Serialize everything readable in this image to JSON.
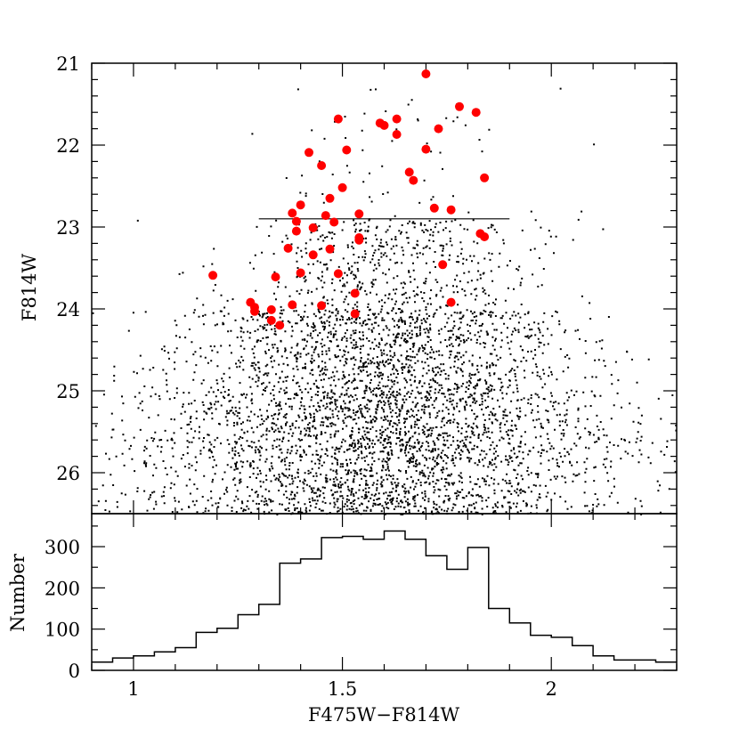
{
  "chart_data": [
    {
      "type": "scatter",
      "panel": "color-magnitude diagram",
      "xlabel": "F475W−F814W",
      "ylabel": "F814W",
      "xlim": [
        0.9,
        2.3
      ],
      "ylim": [
        26.5,
        21
      ],
      "y_inverted": true,
      "xticks": [
        1,
        1.5,
        2
      ],
      "yticks": [
        21,
        22,
        23,
        24,
        25,
        26
      ],
      "ytick_labels": [
        "21",
        "22",
        "23",
        "24",
        "25",
        "26"
      ],
      "grid": false,
      "reference_line": {
        "x": [
          1.3,
          1.9
        ],
        "y": 22.9
      },
      "black_points_note": "dense field of several thousand small black points; distribution summarized by density below and synthesized procedurally",
      "black_density": [
        {
          "mag_range": [
            21.3,
            22.9
          ],
          "color_mean": 1.62,
          "color_sd": 0.14,
          "count": 60
        },
        {
          "mag_range": [
            22.9,
            24.0
          ],
          "color_mean": 1.6,
          "color_sd": 0.17,
          "count": 520
        },
        {
          "mag_range": [
            24.0,
            25.0
          ],
          "color_mean": 1.58,
          "color_sd": 0.24,
          "count": 1300
        },
        {
          "mag_range": [
            25.0,
            26.5
          ],
          "color_mean": 1.58,
          "color_sd": 0.3,
          "count": 2600
        }
      ],
      "highlighted_points": [
        {
          "x": 1.7,
          "y": 21.13
        },
        {
          "x": 1.78,
          "y": 21.53
        },
        {
          "x": 1.82,
          "y": 21.6
        },
        {
          "x": 1.49,
          "y": 21.68
        },
        {
          "x": 1.59,
          "y": 21.73
        },
        {
          "x": 1.6,
          "y": 21.76
        },
        {
          "x": 1.63,
          "y": 21.68
        },
        {
          "x": 1.73,
          "y": 21.8
        },
        {
          "x": 1.63,
          "y": 21.87
        },
        {
          "x": 1.7,
          "y": 22.05
        },
        {
          "x": 1.51,
          "y": 22.06
        },
        {
          "x": 1.42,
          "y": 22.09
        },
        {
          "x": 1.45,
          "y": 22.25
        },
        {
          "x": 1.66,
          "y": 22.33
        },
        {
          "x": 1.84,
          "y": 22.4
        },
        {
          "x": 1.67,
          "y": 22.43
        },
        {
          "x": 1.5,
          "y": 22.52
        },
        {
          "x": 1.47,
          "y": 22.65
        },
        {
          "x": 1.4,
          "y": 22.73
        },
        {
          "x": 1.72,
          "y": 22.77
        },
        {
          "x": 1.76,
          "y": 22.79
        },
        {
          "x": 1.38,
          "y": 22.83
        },
        {
          "x": 1.46,
          "y": 22.86
        },
        {
          "x": 1.54,
          "y": 22.84
        },
        {
          "x": 1.39,
          "y": 22.93
        },
        {
          "x": 1.48,
          "y": 22.94
        },
        {
          "x": 1.43,
          "y": 23.01
        },
        {
          "x": 1.39,
          "y": 23.05
        },
        {
          "x": 1.83,
          "y": 23.08
        },
        {
          "x": 1.84,
          "y": 23.12
        },
        {
          "x": 1.54,
          "y": 23.13
        },
        {
          "x": 1.54,
          "y": 23.16
        },
        {
          "x": 1.37,
          "y": 23.26
        },
        {
          "x": 1.47,
          "y": 23.27
        },
        {
          "x": 1.43,
          "y": 23.34
        },
        {
          "x": 1.74,
          "y": 23.46
        },
        {
          "x": 1.4,
          "y": 23.56
        },
        {
          "x": 1.49,
          "y": 23.57
        },
        {
          "x": 1.19,
          "y": 23.59
        },
        {
          "x": 1.34,
          "y": 23.61
        },
        {
          "x": 1.53,
          "y": 23.81
        },
        {
          "x": 1.28,
          "y": 23.92
        },
        {
          "x": 1.76,
          "y": 23.92
        },
        {
          "x": 1.38,
          "y": 23.95
        },
        {
          "x": 1.45,
          "y": 23.96
        },
        {
          "x": 1.29,
          "y": 23.98
        },
        {
          "x": 1.29,
          "y": 24.03
        },
        {
          "x": 1.33,
          "y": 24.01
        },
        {
          "x": 1.53,
          "y": 24.06
        },
        {
          "x": 1.33,
          "y": 24.14
        },
        {
          "x": 1.35,
          "y": 24.2
        }
      ],
      "colors": {
        "points": "#000000",
        "highlight": "#ff0000"
      }
    },
    {
      "type": "bar",
      "panel": "color histogram",
      "style": "step",
      "xlabel": "F475W−F814W",
      "ylabel": "Number",
      "xlim": [
        0.9,
        2.3
      ],
      "ylim": [
        0,
        380
      ],
      "xticks": [
        1,
        1.5,
        2
      ],
      "xtick_labels": [
        "1",
        "1.5",
        "2"
      ],
      "yticks": [
        0,
        100,
        200,
        300
      ],
      "ytick_labels": [
        "0",
        "100",
        "200",
        "300"
      ],
      "bin_width": 0.05,
      "bin_start": 0.9,
      "values": [
        20,
        30,
        35,
        45,
        55,
        92,
        102,
        135,
        160,
        260,
        270,
        322,
        325,
        318,
        338,
        318,
        278,
        245,
        298,
        150,
        115,
        85,
        80,
        60,
        35,
        25,
        25,
        20
      ]
    }
  ]
}
